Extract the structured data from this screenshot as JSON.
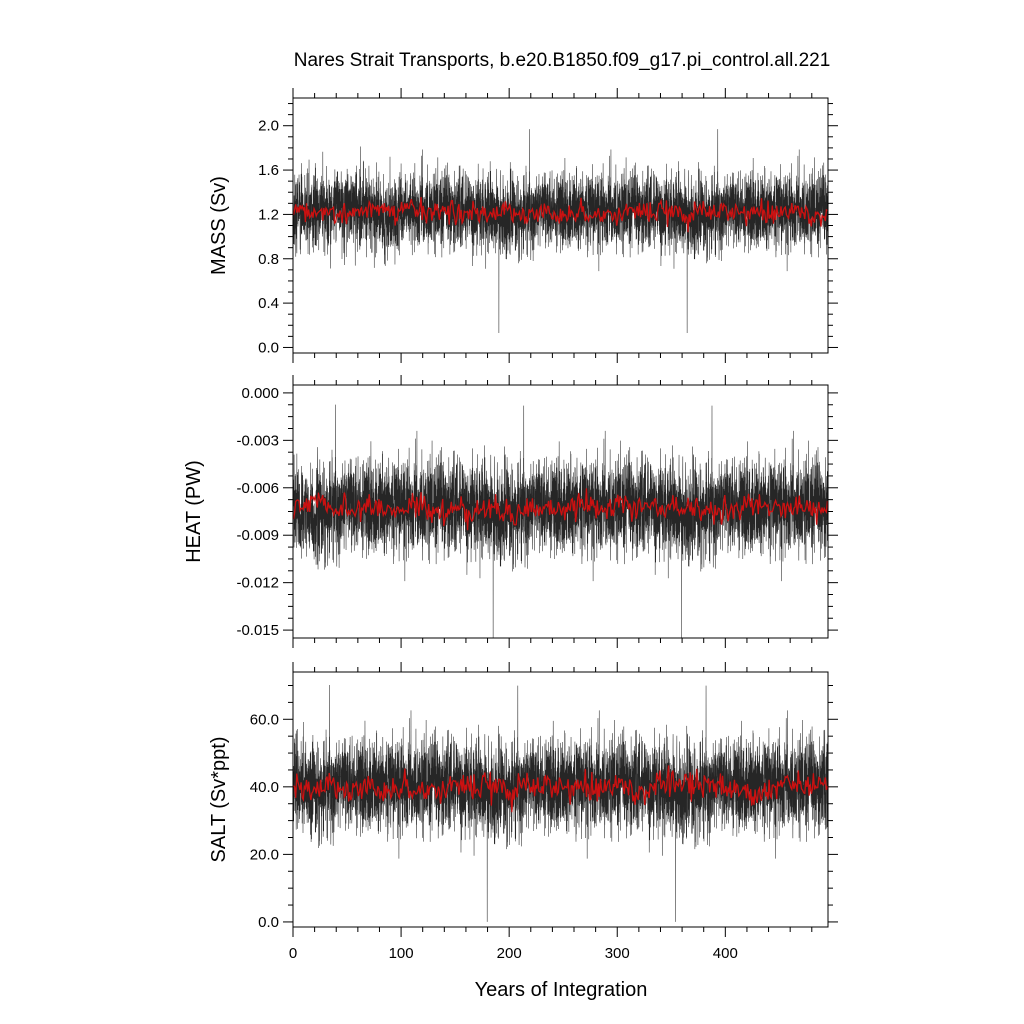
{
  "title": "Nares Strait Transports, b.e20.B1850.f09_g17.pi_control.all.221",
  "chart_data": [
    {
      "type": "line",
      "panel": "mass",
      "ylabel": "MASS (Sv)",
      "ylim": [
        -0.05,
        2.25
      ],
      "yticks": [
        0.0,
        0.4,
        0.8,
        1.2,
        1.6,
        2.0
      ],
      "ytick_labels": [
        "0.0",
        "0.4",
        "0.8",
        "1.2",
        "1.6",
        "2.0"
      ],
      "series": [
        {
          "color": "#000000",
          "style": "monthly",
          "mean": 1.22,
          "spread": 0.15,
          "min": 0.0,
          "max": 2.2
        },
        {
          "color": "#cc1111",
          "style": "annual-mean",
          "mean": 1.22,
          "spread": 0.06
        }
      ]
    },
    {
      "type": "line",
      "panel": "heat",
      "ylabel": "HEAT (PW)",
      "ylim": [
        -0.0155,
        0.0005
      ],
      "yticks": [
        0.0,
        -0.003,
        -0.006,
        -0.009,
        -0.012,
        -0.015
      ],
      "ytick_labels": [
        "0.000",
        "-0.003",
        "-0.006",
        "-0.009",
        "-0.012",
        "-0.015"
      ],
      "series": [
        {
          "color": "#000000",
          "style": "monthly",
          "mean": -0.0073,
          "spread": 0.0013,
          "min": -0.0155,
          "max": 0.0
        },
        {
          "color": "#cc1111",
          "style": "annual-mean",
          "mean": -0.0073,
          "spread": 0.0005
        }
      ]
    },
    {
      "type": "line",
      "panel": "salt",
      "ylabel": "SALT (Sv*ppt)",
      "ylim": [
        -1.5,
        74.0
      ],
      "yticks": [
        0.0,
        20.0,
        40.0,
        60.0
      ],
      "ytick_labels": [
        "0.0",
        "20.0",
        "40.0",
        "60.0"
      ],
      "series": [
        {
          "color": "#000000",
          "style": "monthly",
          "mean": 40.0,
          "spread": 6.0,
          "min": 0.0,
          "max": 73.0
        },
        {
          "color": "#cc1111",
          "style": "annual-mean",
          "mean": 40.0,
          "spread": 2.5
        }
      ]
    }
  ],
  "x_axis": {
    "xlabel": "Years of Integration",
    "xlim": [
      0,
      495
    ],
    "xticks": [
      0,
      100,
      200,
      300,
      400
    ],
    "xtick_labels": [
      "0",
      "100",
      "200",
      "300",
      "400"
    ]
  }
}
